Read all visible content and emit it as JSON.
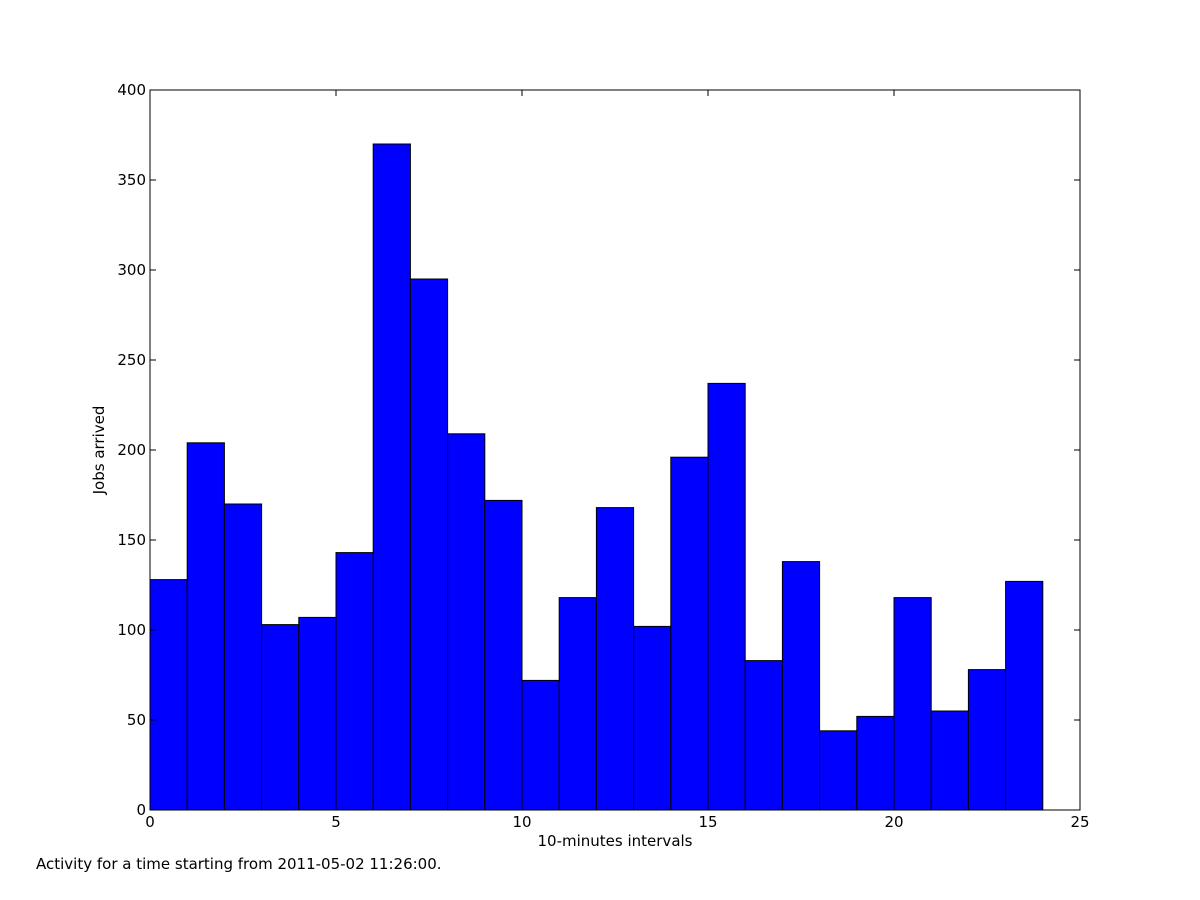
{
  "chart_data": {
    "type": "bar",
    "xlabel": "10-minutes intervals",
    "ylabel": "Jobs arrived",
    "xlim": [
      0,
      25
    ],
    "ylim": [
      0,
      400
    ],
    "x_ticks": [
      0,
      5,
      10,
      15,
      20,
      25
    ],
    "y_ticks": [
      0,
      50,
      100,
      150,
      200,
      250,
      300,
      350,
      400
    ],
    "bin_width": 1,
    "bin_starts": [
      0,
      1,
      2,
      3,
      4,
      5,
      6,
      7,
      8,
      9,
      10,
      11,
      12,
      13,
      14,
      15,
      16,
      17,
      18,
      19,
      20,
      21,
      22,
      23
    ],
    "values": [
      128,
      204,
      170,
      103,
      107,
      143,
      370,
      295,
      209,
      172,
      72,
      118,
      168,
      102,
      196,
      237,
      83,
      138,
      44,
      52,
      118,
      55,
      78,
      127
    ],
    "bar_color": "#0000ff",
    "edge_color": "#000000",
    "grid": false
  },
  "caption": "Activity for a time starting from 2011-05-02 11:26:00."
}
